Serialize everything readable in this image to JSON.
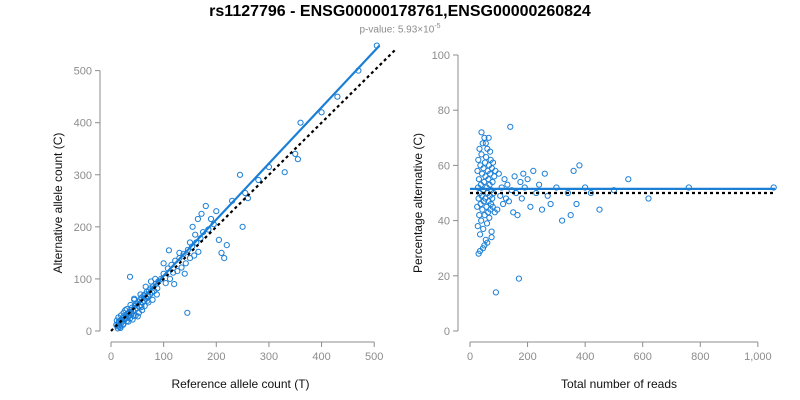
{
  "title": "rs1127796 - ENSG00000178761,ENSG00000260824",
  "subtitle": {
    "prefix": "p-value: 5.93×10",
    "exponent": "-5"
  },
  "colors": {
    "points": "#1b7fd6",
    "fit": "#1b7fd6",
    "reference": "#000000",
    "axis": "#8c8c8c"
  },
  "chart_data": [
    {
      "type": "scatter",
      "title": "",
      "xlabel": "Reference allele count (T)",
      "ylabel": "Alternative allele count (C)",
      "xlim": [
        0,
        530
      ],
      "ylim": [
        0,
        530
      ],
      "xticks": [
        0,
        100,
        200,
        300,
        400,
        500
      ],
      "yticks": [
        0,
        100,
        200,
        300,
        400,
        500
      ],
      "xtick_labels": [
        "0",
        "100",
        "200",
        "300",
        "400",
        "500"
      ],
      "ytick_labels": [
        "0",
        "100",
        "200",
        "300",
        "400",
        "500"
      ],
      "grid": false,
      "fit_line": {
        "x": [
          20,
          510
        ],
        "y": [
          20,
          548
        ]
      },
      "reference_line": {
        "x": [
          0,
          540
        ],
        "y": [
          0,
          540
        ]
      },
      "points": [
        [
          10,
          12
        ],
        [
          12,
          9
        ],
        [
          14,
          15
        ],
        [
          15,
          18
        ],
        [
          16,
          11
        ],
        [
          18,
          20
        ],
        [
          20,
          16
        ],
        [
          21,
          24
        ],
        [
          22,
          19
        ],
        [
          24,
          14
        ],
        [
          25,
          27
        ],
        [
          26,
          22
        ],
        [
          28,
          30
        ],
        [
          29,
          25
        ],
        [
          30,
          19
        ],
        [
          31,
          33
        ],
        [
          32,
          28
        ],
        [
          34,
          36
        ],
        [
          35,
          30
        ],
        [
          36,
          24
        ],
        [
          38,
          40
        ],
        [
          39,
          33
        ],
        [
          40,
          45
        ],
        [
          42,
          38
        ],
        [
          43,
          29
        ],
        [
          45,
          48
        ],
        [
          46,
          41
        ],
        [
          48,
          52
        ],
        [
          50,
          44
        ],
        [
          52,
          56
        ],
        [
          54,
          47
        ],
        [
          55,
          60
        ],
        [
          57,
          50
        ],
        [
          58,
          64
        ],
        [
          60,
          55
        ],
        [
          62,
          68
        ],
        [
          63,
          58
        ],
        [
          65,
          70
        ],
        [
          67,
          62
        ],
        [
          68,
          75
        ],
        [
          70,
          66
        ],
        [
          72,
          78
        ],
        [
          74,
          70
        ],
        [
          75,
          82
        ],
        [
          78,
          74
        ],
        [
          80,
          86
        ],
        [
          82,
          77
        ],
        [
          85,
          90
        ],
        [
          88,
          82
        ],
        [
          90,
          95
        ],
        [
          13,
          5
        ],
        [
          17,
          8
        ],
        [
          19,
          30
        ],
        [
          23,
          12
        ],
        [
          27,
          40
        ],
        [
          33,
          18
        ],
        [
          37,
          50
        ],
        [
          41,
          22
        ],
        [
          44,
          60
        ],
        [
          47,
          30
        ],
        [
          53,
          35
        ],
        [
          56,
          70
        ],
        [
          59,
          40
        ],
        [
          64,
          48
        ],
        [
          66,
          85
        ],
        [
          71,
          55
        ],
        [
          76,
          95
        ],
        [
          79,
          60
        ],
        [
          84,
          100
        ],
        [
          87,
          70
        ],
        [
          11,
          20
        ],
        [
          14,
          26
        ],
        [
          18,
          6
        ],
        [
          24,
          35
        ],
        [
          30,
          42
        ],
        [
          36,
          104
        ],
        [
          44,
          62
        ],
        [
          51,
          28
        ],
        [
          58,
          46
        ],
        [
          69,
          58
        ],
        [
          95,
          100
        ],
        [
          100,
          110
        ],
        [
          104,
          92
        ],
        [
          108,
          120
        ],
        [
          112,
          100
        ],
        [
          115,
          127
        ],
        [
          118,
          112
        ],
        [
          122,
          135
        ],
        [
          126,
          115
        ],
        [
          130,
          140
        ],
        [
          134,
          122
        ],
        [
          138,
          148
        ],
        [
          142,
          130
        ],
        [
          146,
          156
        ],
        [
          150,
          140
        ],
        [
          154,
          162
        ],
        [
          158,
          145
        ],
        [
          162,
          170
        ],
        [
          166,
          152
        ],
        [
          170,
          178
        ],
        [
          100,
          130
        ],
        [
          110,
          155
        ],
        [
          120,
          90
        ],
        [
          130,
          150
        ],
        [
          140,
          110
        ],
        [
          145,
          35
        ],
        [
          150,
          170
        ],
        [
          155,
          200
        ],
        [
          160,
          185
        ],
        [
          165,
          215
        ],
        [
          172,
          225
        ],
        [
          175,
          190
        ],
        [
          180,
          240
        ],
        [
          185,
          195
        ],
        [
          190,
          215
        ],
        [
          195,
          205
        ],
        [
          200,
          230
        ],
        [
          205,
          175
        ],
        [
          210,
          150
        ],
        [
          215,
          140
        ],
        [
          220,
          165
        ],
        [
          230,
          250
        ],
        [
          245,
          300
        ],
        [
          250,
          200
        ],
        [
          255,
          265
        ],
        [
          260,
          255
        ],
        [
          280,
          290
        ],
        [
          300,
          315
        ],
        [
          330,
          305
        ],
        [
          350,
          340
        ],
        [
          355,
          330
        ],
        [
          360,
          400
        ],
        [
          400,
          420
        ],
        [
          430,
          450
        ],
        [
          470,
          500
        ],
        [
          505,
          548
        ]
      ]
    },
    {
      "type": "scatter",
      "title": "",
      "xlabel": "Total number of reads",
      "ylabel": "Percentage alternative (C)",
      "xlim": [
        0,
        1070
      ],
      "ylim": [
        0,
        100
      ],
      "xticks": [
        0,
        200,
        400,
        600,
        800,
        1000
      ],
      "yticks": [
        0,
        20,
        40,
        60,
        80,
        100
      ],
      "xtick_labels": [
        "0",
        "200",
        "400",
        "600",
        "800",
        "1,000"
      ],
      "ytick_labels": [
        "0",
        "20",
        "40",
        "60",
        "80",
        "100"
      ],
      "grid": false,
      "fit_line": {
        "x": [
          0,
          1060
        ],
        "y": [
          51.5,
          51.5
        ]
      },
      "reference_line": {
        "x": [
          0,
          1060
        ],
        "y": [
          50,
          50
        ]
      },
      "points": [
        [
          25,
          45
        ],
        [
          26,
          58
        ],
        [
          27,
          38
        ],
        [
          28,
          52
        ],
        [
          29,
          62
        ],
        [
          30,
          48
        ],
        [
          31,
          55
        ],
        [
          32,
          42
        ],
        [
          33,
          66
        ],
        [
          34,
          50
        ],
        [
          35,
          35
        ],
        [
          36,
          60
        ],
        [
          37,
          46
        ],
        [
          38,
          53
        ],
        [
          39,
          40
        ],
        [
          40,
          64
        ],
        [
          41,
          49
        ],
        [
          42,
          57
        ],
        [
          43,
          44
        ],
        [
          44,
          68
        ],
        [
          45,
          51
        ],
        [
          46,
          37
        ],
        [
          47,
          59
        ],
        [
          48,
          47
        ],
        [
          49,
          54
        ],
        [
          50,
          70
        ],
        [
          51,
          42
        ],
        [
          52,
          61
        ],
        [
          53,
          48
        ],
        [
          54,
          56
        ],
        [
          55,
          33
        ],
        [
          56,
          63
        ],
        [
          57,
          45
        ],
        [
          58,
          52
        ],
        [
          59,
          39
        ],
        [
          60,
          66
        ],
        [
          61,
          50
        ],
        [
          62,
          58
        ],
        [
          63,
          43
        ],
        [
          64,
          55
        ],
        [
          65,
          47
        ],
        [
          66,
          60
        ],
        [
          67,
          41
        ],
        [
          68,
          53
        ],
        [
          69,
          49
        ],
        [
          70,
          57
        ],
        [
          71,
          44
        ],
        [
          72,
          62
        ],
        [
          73,
          46
        ],
        [
          74,
          51
        ],
        [
          75,
          36
        ],
        [
          76,
          59
        ],
        [
          77,
          48
        ],
        [
          78,
          54
        ],
        [
          79,
          45
        ],
        [
          80,
          61
        ],
        [
          82,
          50
        ],
        [
          84,
          56
        ],
        [
          86,
          43
        ],
        [
          88,
          58
        ],
        [
          30,
          28
        ],
        [
          35,
          29
        ],
        [
          40,
          72
        ],
        [
          45,
          30
        ],
        [
          50,
          31
        ],
        [
          55,
          68
        ],
        [
          60,
          32
        ],
        [
          65,
          70
        ],
        [
          70,
          65
        ],
        [
          75,
          34
        ],
        [
          90,
          14
        ],
        [
          95,
          44
        ],
        [
          100,
          57
        ],
        [
          105,
          49
        ],
        [
          110,
          52
        ],
        [
          115,
          46
        ],
        [
          120,
          55
        ],
        [
          125,
          48
        ],
        [
          130,
          53
        ],
        [
          135,
          47
        ],
        [
          140,
          74
        ],
        [
          145,
          51
        ],
        [
          150,
          43
        ],
        [
          155,
          56
        ],
        [
          160,
          50
        ],
        [
          165,
          42
        ],
        [
          170,
          19
        ],
        [
          175,
          54
        ],
        [
          180,
          48
        ],
        [
          185,
          57
        ],
        [
          190,
          52
        ],
        [
          200,
          55
        ],
        [
          210,
          45
        ],
        [
          220,
          58
        ],
        [
          230,
          50
        ],
        [
          240,
          53
        ],
        [
          250,
          44
        ],
        [
          260,
          57
        ],
        [
          270,
          49
        ],
        [
          280,
          46
        ],
        [
          300,
          52
        ],
        [
          320,
          40
        ],
        [
          340,
          50
        ],
        [
          350,
          42
        ],
        [
          360,
          58
        ],
        [
          370,
          46
        ],
        [
          380,
          60
        ],
        [
          400,
          52
        ],
        [
          420,
          50
        ],
        [
          450,
          44
        ],
        [
          500,
          51
        ],
        [
          550,
          55
        ],
        [
          620,
          48
        ],
        [
          760,
          52
        ],
        [
          1055,
          52
        ]
      ]
    }
  ]
}
